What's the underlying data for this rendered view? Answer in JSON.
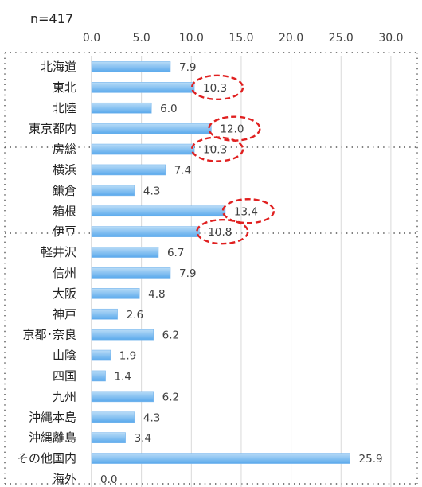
{
  "note": "n=417",
  "colors": {
    "bar_top": "#b9dcf7",
    "bar_bottom": "#5aa9ec",
    "grid": "#d9d9d9",
    "text": "#404040",
    "highlight": "#e02020"
  },
  "chart_data": {
    "type": "bar",
    "orientation": "horizontal",
    "xlim": [
      0,
      30
    ],
    "xticks": [
      "0.0",
      "5.0",
      "10.0",
      "15.0",
      "20.0",
      "25.0",
      "30.0"
    ],
    "grid": true,
    "categories": [
      "北海道",
      "東北",
      "北陸",
      "東京都内",
      "房総",
      "横浜",
      "鎌倉",
      "箱根",
      "伊豆",
      "軽井沢",
      "信州",
      "大阪",
      "神戸",
      "京都･奈良",
      "山陰",
      "四国",
      "九州",
      "沖縄本島",
      "沖縄離島",
      "その他国内",
      "海外"
    ],
    "values": [
      7.9,
      10.3,
      6.0,
      12.0,
      10.3,
      7.4,
      4.3,
      13.4,
      10.8,
      6.7,
      7.9,
      4.8,
      2.6,
      6.2,
      1.9,
      1.4,
      6.2,
      4.3,
      3.4,
      25.9,
      0.0
    ],
    "value_labels": [
      "7.9",
      "10.3",
      "6.0",
      "12.0",
      "10.3",
      "7.4",
      "4.3",
      "13.4",
      "10.8",
      "6.7",
      "7.9",
      "4.8",
      "2.6",
      "6.2",
      "1.9",
      "1.4",
      "6.2",
      "4.3",
      "3.4",
      "25.9",
      "0.0"
    ],
    "highlighted": [
      "東北",
      "東京都内",
      "房総",
      "箱根",
      "伊豆"
    ]
  }
}
